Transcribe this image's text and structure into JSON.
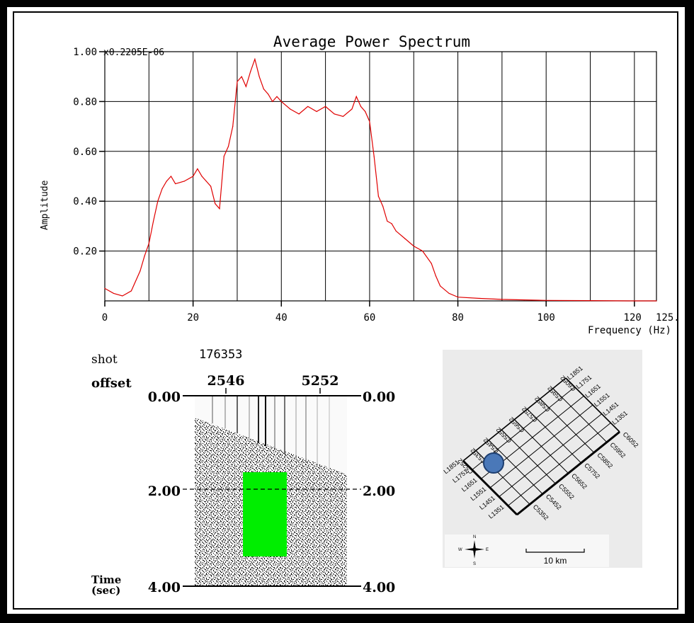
{
  "spectrum": {
    "title": "Average Power Spectrum",
    "scale_label": "x0.2205E-06",
    "ylabel": "Amplitude",
    "xlabel": "Frequency (Hz)",
    "x_end_label": "125.",
    "y_ticks": [
      "1.00",
      "0.80",
      "0.60",
      "0.40",
      "0.20"
    ],
    "x_ticks": [
      "0",
      "20",
      "40",
      "60",
      "80",
      "100",
      "120"
    ]
  },
  "chart_data": {
    "type": "line",
    "title": "Average Power Spectrum",
    "xlabel": "Frequency (Hz)",
    "ylabel": "Amplitude",
    "xlim": [
      0,
      125
    ],
    "ylim": [
      0,
      1.0
    ],
    "grid": true,
    "line_color": "#e00000",
    "x": [
      0,
      2,
      4,
      6,
      8,
      9,
      10,
      11,
      12,
      13,
      14,
      15,
      16,
      18,
      20,
      21,
      22,
      23,
      24,
      25,
      26,
      27,
      28,
      29,
      30,
      31,
      32,
      33,
      34,
      35,
      36,
      37,
      38,
      39,
      40,
      42,
      44,
      46,
      48,
      50,
      52,
      54,
      56,
      57,
      58,
      59,
      60,
      61,
      62,
      63,
      64,
      65,
      66,
      68,
      70,
      72,
      74,
      75,
      76,
      78,
      80,
      85,
      90,
      95,
      100,
      110,
      120,
      125
    ],
    "y": [
      0.05,
      0.03,
      0.02,
      0.04,
      0.12,
      0.18,
      0.23,
      0.32,
      0.4,
      0.45,
      0.48,
      0.5,
      0.47,
      0.48,
      0.5,
      0.53,
      0.5,
      0.48,
      0.46,
      0.39,
      0.37,
      0.58,
      0.62,
      0.7,
      0.88,
      0.9,
      0.86,
      0.92,
      0.97,
      0.9,
      0.85,
      0.83,
      0.8,
      0.82,
      0.8,
      0.77,
      0.75,
      0.78,
      0.76,
      0.78,
      0.75,
      0.74,
      0.77,
      0.82,
      0.78,
      0.76,
      0.72,
      0.58,
      0.42,
      0.38,
      0.32,
      0.31,
      0.28,
      0.25,
      0.22,
      0.2,
      0.15,
      0.1,
      0.06,
      0.03,
      0.015,
      0.01,
      0.006,
      0.004,
      0.002,
      0.001,
      0.0,
      0.0
    ]
  },
  "seismic": {
    "shot_label": "shot",
    "shot_value": "176353",
    "offset_label": "offset",
    "offset_values": [
      "2546",
      "5252"
    ],
    "time_ticks": [
      "0.00",
      "2.00",
      "4.00"
    ],
    "time_label_1": "Time",
    "time_label_2": "(sec)"
  },
  "map": {
    "top_lines": [
      "C6052",
      "C5952",
      "C5852",
      "C5752",
      "C5652",
      "C5552",
      "C5452",
      "C5352",
      "C5252"
    ],
    "right_top_lines": [
      "L1851",
      "L1751",
      "L1651",
      "L1551",
      "L1451",
      "L1351"
    ],
    "left_lines": [
      "L1851",
      "L1751",
      "L1651",
      "L1551",
      "L1451",
      "L1351"
    ],
    "bottom_lines": [
      "C6052",
      "C5952",
      "C5852",
      "C5752",
      "C5652",
      "C5552",
      "C5452",
      "C5352"
    ],
    "scale_label": "10 km",
    "compass": {
      "n": "N",
      "s": "S",
      "e": "E",
      "w": "W"
    },
    "marker_color": "#4a78b8"
  }
}
